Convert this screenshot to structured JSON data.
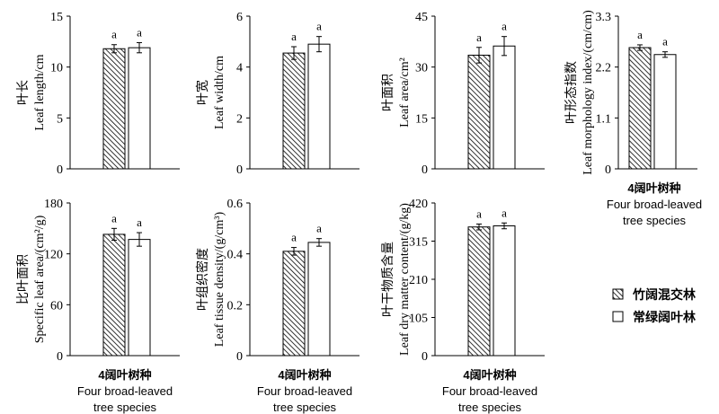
{
  "legend": {
    "items": [
      {
        "label": "竹阔混交林",
        "fill": "hatch"
      },
      {
        "label": "常绿阔叶林",
        "fill": "white"
      }
    ]
  },
  "chart_data": [
    {
      "id": "leaf-length",
      "type": "bar",
      "ylabel_zh": "叶长",
      "ylabel": "Leaf length/cm",
      "yticks": [
        "0",
        "5",
        "10",
        "15"
      ],
      "ylim": [
        0,
        15
      ],
      "xlabel_zh": "",
      "xlabel": "",
      "series": [
        {
          "name": "竹阔混交林",
          "value": 11.8,
          "error": 0.4,
          "sig": "a"
        },
        {
          "name": "常绿阔叶林",
          "value": 11.9,
          "error": 0.5,
          "sig": "a"
        }
      ]
    },
    {
      "id": "leaf-width",
      "type": "bar",
      "ylabel_zh": "叶宽",
      "ylabel": "Leaf width/cm",
      "yticks": [
        "0",
        "2",
        "4",
        "6"
      ],
      "ylim": [
        0,
        6
      ],
      "xlabel_zh": "",
      "xlabel": "",
      "series": [
        {
          "name": "竹阔混交林",
          "value": 4.55,
          "error": 0.25,
          "sig": "a"
        },
        {
          "name": "常绿阔叶林",
          "value": 4.9,
          "error": 0.3,
          "sig": "a"
        }
      ]
    },
    {
      "id": "leaf-area",
      "type": "bar",
      "ylabel_zh": "叶面积",
      "ylabel": "Leaf area/cm²",
      "yticks": [
        "0",
        "15",
        "30",
        "45"
      ],
      "ylim": [
        0,
        45
      ],
      "xlabel_zh": "",
      "xlabel": "",
      "series": [
        {
          "name": "竹阔混交林",
          "value": 33.5,
          "error": 2.3,
          "sig": "a"
        },
        {
          "name": "常绿阔叶林",
          "value": 36.2,
          "error": 2.8,
          "sig": "a"
        }
      ]
    },
    {
      "id": "leaf-morphology-index",
      "type": "bar",
      "ylabel_zh": "叶形态指数",
      "ylabel": "Leaf morphology index/(cm/cm)",
      "yticks": [
        "0",
        "1.1",
        "2.2",
        "3.3"
      ],
      "ylim": [
        0,
        3.3
      ],
      "xlabel_zh": "4阔叶树种",
      "xlabel": "Four broad-leaved tree species",
      "series": [
        {
          "name": "竹阔混交林",
          "value": 2.62,
          "error": 0.06,
          "sig": "a"
        },
        {
          "name": "常绿阔叶林",
          "value": 2.47,
          "error": 0.06,
          "sig": "a"
        }
      ]
    },
    {
      "id": "specific-leaf-area",
      "type": "bar",
      "ylabel_zh": "比叶面积",
      "ylabel": "Specific leaf area/(cm²/g)",
      "yticks": [
        "0",
        "60",
        "120",
        "180"
      ],
      "ylim": [
        0,
        180
      ],
      "xlabel_zh": "4阔叶树种",
      "xlabel": "Four broad-leaved tree species",
      "series": [
        {
          "name": "竹阔混交林",
          "value": 143,
          "error": 7,
          "sig": "a"
        },
        {
          "name": "常绿阔叶林",
          "value": 137,
          "error": 8,
          "sig": "a"
        }
      ]
    },
    {
      "id": "leaf-tissue-density",
      "type": "bar",
      "ylabel_zh": "叶组织密度",
      "ylabel": "Leaf tissue density/(g/cm³)",
      "yticks": [
        "0",
        "0.2",
        "0.4",
        "0.6"
      ],
      "ylim": [
        0,
        0.6
      ],
      "xlabel_zh": "4阔叶树种",
      "xlabel": "Four broad-leaved tree species",
      "series": [
        {
          "name": "竹阔混交林",
          "value": 0.41,
          "error": 0.015,
          "sig": "a"
        },
        {
          "name": "常绿阔叶林",
          "value": 0.445,
          "error": 0.015,
          "sig": "a"
        }
      ]
    },
    {
      "id": "leaf-dry-matter-content",
      "type": "bar",
      "ylabel_zh": "叶干物质含量",
      "ylabel": "Leaf dry matter content/(g/kg)",
      "yticks": [
        "0",
        "105",
        "210",
        "315",
        "420"
      ],
      "ylim": [
        0,
        420
      ],
      "xlabel_zh": "4阔叶树种",
      "xlabel": "Four broad-leaved tree species",
      "series": [
        {
          "name": "竹阔混交林",
          "value": 354,
          "error": 8,
          "sig": "a"
        },
        {
          "name": "常绿阔叶林",
          "value": 357,
          "error": 8,
          "sig": "a"
        }
      ]
    }
  ]
}
